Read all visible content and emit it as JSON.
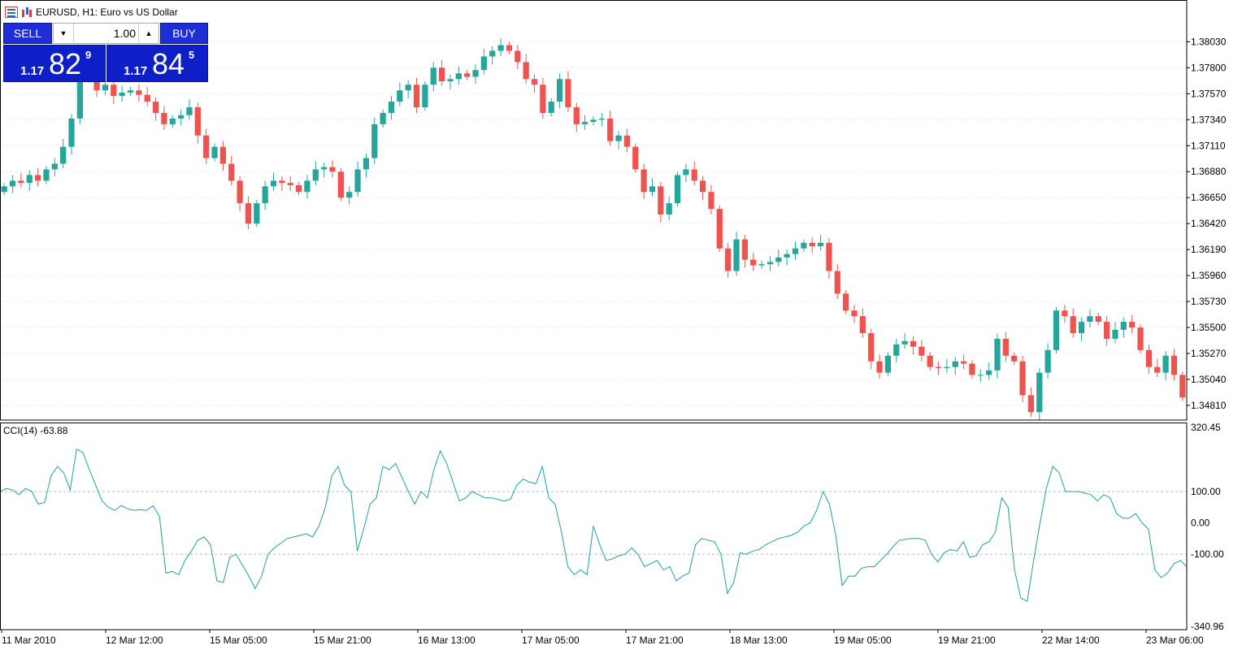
{
  "header": {
    "symbol_title": "EURUSD, H1:  Euro vs US Dollar",
    "icons": [
      "market-watch-icon",
      "chart-bars-icon"
    ]
  },
  "trade_panel": {
    "sell_label": "SELL",
    "buy_label": "BUY",
    "lot_value": "1.00",
    "bid": {
      "prefix": "1.17",
      "big": "82",
      "sup": "9"
    },
    "ask": {
      "prefix": "1.17",
      "big": "84",
      "sup": "5"
    },
    "colors": {
      "button": "#1c2ed4",
      "price_box": "#0e1fc8"
    }
  },
  "indicator": {
    "label": "CCI(14) -63.88"
  },
  "chart_data": [
    {
      "type": "candlestick",
      "symbol": "EURUSD",
      "timeframe": "H1",
      "ylim": [
        1.3468,
        1.384
      ],
      "y_ticks": [
        "1.38030",
        "1.37800",
        "1.37570",
        "1.37340",
        "1.37110",
        "1.36880",
        "1.36650",
        "1.36420",
        "1.36190",
        "1.35960",
        "1.35730",
        "1.35500",
        "1.35270",
        "1.35040",
        "1.34810"
      ],
      "x_ticks": [
        "11 Mar 2010",
        "12 Mar 12:00",
        "15 Mar 05:00",
        "15 Mar 21:00",
        "16 Mar 13:00",
        "17 Mar 05:00",
        "17 Mar 21:00",
        "18 Mar 13:00",
        "19 Mar 05:00",
        "19 Mar 21:00",
        "22 Mar 14:00",
        "23 Mar 06:00"
      ],
      "colors": {
        "up": "#26a69a",
        "down": "#ef5350"
      },
      "grid": true,
      "close_series": [
        1.3675,
        1.368,
        1.3678,
        1.3685,
        1.368,
        1.369,
        1.3695,
        1.371,
        1.3735,
        1.377,
        1.379,
        1.376,
        1.3765,
        1.3755,
        1.3758,
        1.376,
        1.3756,
        1.375,
        1.374,
        1.373,
        1.3735,
        1.3738,
        1.3745,
        1.372,
        1.37,
        1.371,
        1.3695,
        1.368,
        1.366,
        1.3642,
        1.366,
        1.3675,
        1.368,
        1.3678,
        1.3676,
        1.367,
        1.368,
        1.369,
        1.3692,
        1.3688,
        1.3665,
        1.367,
        1.369,
        1.37,
        1.373,
        1.374,
        1.375,
        1.376,
        1.3765,
        1.3745,
        1.3765,
        1.378,
        1.3768,
        1.377,
        1.3775,
        1.3772,
        1.3778,
        1.379,
        1.3795,
        1.38,
        1.3795,
        1.3785,
        1.377,
        1.3765,
        1.374,
        1.375,
        1.377,
        1.3745,
        1.373,
        1.3732,
        1.3734,
        1.3735,
        1.3715,
        1.372,
        1.371,
        1.369,
        1.367,
        1.3675,
        1.365,
        1.366,
        1.3685,
        1.369,
        1.368,
        1.367,
        1.3655,
        1.362,
        1.36,
        1.3628,
        1.361,
        1.3605,
        1.3606,
        1.3608,
        1.3612,
        1.3615,
        1.362,
        1.3625,
        1.3622,
        1.3625,
        1.36,
        1.358,
        1.3565,
        1.356,
        1.3545,
        1.352,
        1.351,
        1.3525,
        1.3535,
        1.3538,
        1.3533,
        1.3525,
        1.3515,
        1.3514,
        1.3515,
        1.352,
        1.3518,
        1.3508,
        1.3508,
        1.3512,
        1.354,
        1.3525,
        1.352,
        1.349,
        1.3475,
        1.351,
        1.353,
        1.3565,
        1.356,
        1.3545,
        1.3555,
        1.356,
        1.3555,
        1.354,
        1.3548,
        1.3555,
        1.355,
        1.353,
        1.3515,
        1.351,
        1.3525,
        1.3508,
        1.3488
      ]
    },
    {
      "type": "line",
      "name": "CCI(14)",
      "ylim": [
        -340.96,
        320.45
      ],
      "y_ticks": [
        "320.45",
        "100.00",
        "0.00",
        "-100.00",
        "-340.96"
      ],
      "levels": [
        100,
        -100
      ],
      "color": "#20a0a0",
      "values": [
        100,
        110,
        105,
        90,
        110,
        100,
        60,
        65,
        150,
        180,
        160,
        105,
        235,
        225,
        170,
        120,
        70,
        50,
        40,
        55,
        45,
        40,
        42,
        40,
        55,
        20,
        -160,
        -155,
        -165,
        -120,
        -90,
        -55,
        -45,
        -70,
        -185,
        -190,
        -110,
        -100,
        -135,
        -170,
        -210,
        -170,
        -100,
        -80,
        -65,
        -50,
        -45,
        -40,
        -35,
        -45,
        -10,
        50,
        150,
        180,
        120,
        100,
        -90,
        -20,
        60,
        80,
        180,
        170,
        190,
        145,
        100,
        60,
        100,
        80,
        170,
        230,
        190,
        130,
        70,
        80,
        100,
        90,
        80,
        80,
        75,
        70,
        75,
        120,
        140,
        130,
        125,
        180,
        80,
        60,
        -30,
        -140,
        -165,
        -150,
        -165,
        -10,
        -70,
        -120,
        -115,
        -105,
        -100,
        -80,
        -100,
        -140,
        -130,
        -120,
        -150,
        -140,
        -185,
        -170,
        -160,
        -70,
        -50,
        -55,
        -60,
        -100,
        -225,
        -190,
        -95,
        -100,
        -90,
        -85,
        -70,
        -60,
        -50,
        -45,
        -40,
        -30,
        -10,
        0,
        40,
        100,
        60,
        -40,
        -200,
        -170,
        -170,
        -145,
        -140,
        -140,
        -120,
        -100,
        -75,
        -55,
        -52,
        -50,
        -50,
        -55,
        -100,
        -125,
        -95,
        -85,
        -90,
        -60,
        -110,
        -105,
        -70,
        -60,
        -30,
        80,
        50,
        -150,
        -240,
        -250,
        -120,
        0,
        110,
        180,
        160,
        100,
        100,
        100,
        95,
        90,
        70,
        90,
        80,
        30,
        15,
        15,
        30,
        0,
        -20,
        -150,
        -175,
        -160,
        -130,
        -120,
        -140
      ]
    }
  ]
}
